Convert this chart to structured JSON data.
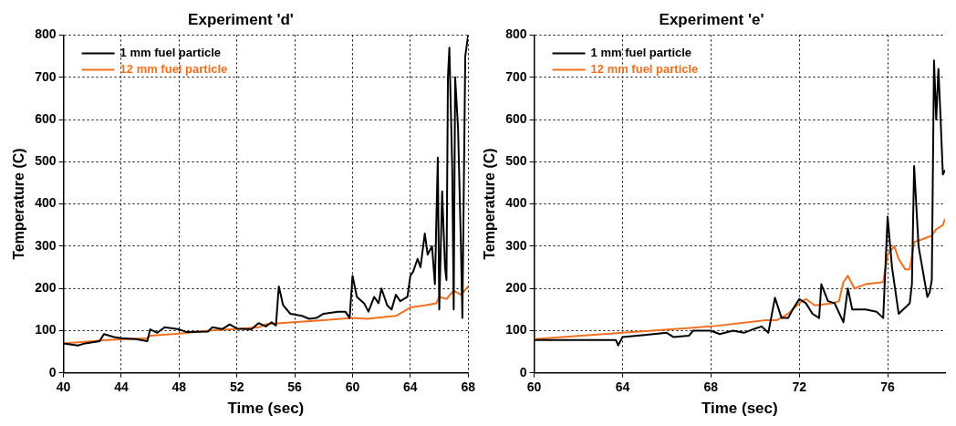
{
  "chart_data": [
    {
      "type": "line",
      "title": "Experiment 'd'",
      "xlabel": "Time (sec)",
      "ylabel": "Temperature (C)",
      "xlim": [
        40,
        68
      ],
      "xticks": [
        40,
        44,
        48,
        52,
        56,
        60,
        64,
        68
      ],
      "ylim": [
        0,
        800
      ],
      "yticks": [
        0,
        100,
        200,
        300,
        400,
        500,
        600,
        700,
        800
      ],
      "grid": true,
      "legend": "top left",
      "marker": "none",
      "line_style": "solid",
      "series": [
        {
          "name": "1 mm fuel particle",
          "color": "#000000",
          "x": [
            40,
            41,
            41.5,
            42.5,
            42.8,
            43.5,
            44,
            45,
            45.8,
            46,
            46.5,
            47,
            48,
            48.5,
            50,
            50.3,
            51,
            51.5,
            52,
            53,
            53.5,
            54,
            54.4,
            54.7,
            54.9,
            55.2,
            55.7,
            56.5,
            57,
            57.5,
            58,
            59,
            59.5,
            59.8,
            60,
            60.3,
            60.8,
            61.1,
            61.5,
            61.8,
            62,
            62.4,
            62.7,
            63,
            63.3,
            63.8,
            64,
            64.2,
            64.5,
            64.7,
            65,
            65.2,
            65.5,
            65.7,
            65.9,
            66,
            66.2,
            66.4,
            66.5,
            66.6,
            66.7,
            66.9,
            67,
            67.1,
            67.3,
            67.5,
            67.6,
            67.8,
            68
          ],
          "values": [
            70,
            65,
            70,
            75,
            92,
            85,
            82,
            80,
            75,
            103,
            95,
            108,
            103,
            97,
            98,
            108,
            104,
            115,
            105,
            103,
            118,
            110,
            120,
            112,
            205,
            160,
            140,
            135,
            128,
            130,
            140,
            145,
            145,
            130,
            230,
            180,
            165,
            145,
            180,
            165,
            200,
            160,
            150,
            185,
            170,
            180,
            230,
            240,
            270,
            250,
            330,
            280,
            300,
            210,
            510,
            150,
            430,
            250,
            220,
            700,
            770,
            480,
            150,
            700,
            580,
            300,
            130,
            750,
            800
          ]
        },
        {
          "name": "12 mm fuel particle",
          "color": "#f07020",
          "x": [
            40,
            43,
            45.8,
            46,
            48,
            50,
            52,
            53.5,
            54,
            55,
            58,
            60,
            61,
            63,
            64,
            65,
            65.8,
            66,
            66.5,
            67,
            67.5,
            68
          ],
          "values": [
            70,
            78,
            82,
            88,
            93,
            100,
            104,
            108,
            115,
            118,
            125,
            130,
            128,
            135,
            155,
            160,
            165,
            180,
            175,
            195,
            185,
            205
          ]
        }
      ]
    },
    {
      "type": "line",
      "title": "Experiment 'e'",
      "xlabel": "Time (sec)",
      "ylabel": "Temperature (C)",
      "xlim": [
        60,
        78.6
      ],
      "xticks": [
        60,
        64,
        68,
        72,
        76
      ],
      "ylim": [
        0,
        800
      ],
      "yticks": [
        0,
        100,
        200,
        300,
        400,
        500,
        600,
        700,
        800
      ],
      "grid": true,
      "legend": "top left",
      "marker": "none",
      "line_style": "solid",
      "series": [
        {
          "name": "1 mm fuel particle",
          "color": "#000000",
          "x": [
            60,
            62,
            63.7,
            63.8,
            64,
            65,
            66,
            66.3,
            67,
            67.2,
            68,
            68.4,
            69,
            69.5,
            70,
            70.3,
            70.6,
            70.9,
            71.2,
            71.5,
            71.7,
            72,
            72.3,
            72.6,
            72.9,
            73,
            73.3,
            73.6,
            74,
            74.2,
            74.4,
            75,
            75.5,
            75.8,
            76,
            76.2,
            76.5,
            77,
            77.1,
            77.2,
            77.4,
            77.8,
            77.9,
            78,
            78.1,
            78.2,
            78.3,
            78.4,
            78.5,
            78.6
          ],
          "values": [
            78,
            78,
            78,
            65,
            85,
            90,
            95,
            85,
            88,
            100,
            100,
            92,
            100,
            95,
            105,
            110,
            95,
            178,
            130,
            130,
            150,
            175,
            165,
            140,
            130,
            210,
            170,
            165,
            120,
            200,
            150,
            150,
            145,
            130,
            370,
            250,
            140,
            165,
            210,
            490,
            300,
            180,
            190,
            220,
            740,
            600,
            720,
            600,
            470,
            480
          ]
        },
        {
          "name": "12 mm fuel particle",
          "color": "#f07020",
          "x": [
            60,
            64,
            68,
            70.5,
            71,
            71.5,
            72,
            72.3,
            72.7,
            73.5,
            73.8,
            74,
            74.2,
            74.5,
            75,
            75.8,
            76,
            76.3,
            76.5,
            76.8,
            77,
            77.2,
            77.5,
            78,
            78.2,
            78.5,
            78.6
          ],
          "values": [
            80,
            95,
            110,
            125,
            125,
            140,
            165,
            175,
            160,
            165,
            170,
            215,
            230,
            200,
            210,
            215,
            280,
            300,
            270,
            245,
            245,
            310,
            315,
            325,
            340,
            350,
            365
          ]
        }
      ]
    }
  ]
}
